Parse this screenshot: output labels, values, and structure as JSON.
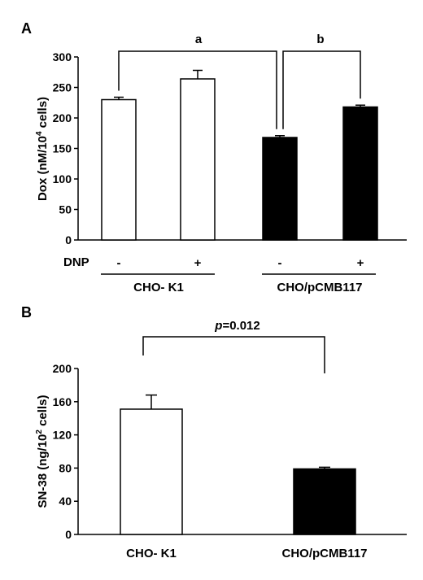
{
  "chart_data": [
    {
      "type": "bar",
      "panel": "A",
      "ylabel": "Dox (nM/10",
      "ylabel_sup": "4",
      "ylabel_end": " cells)",
      "ylim": [
        0,
        300
      ],
      "yticks": [
        "0",
        "50",
        "100",
        "150",
        "200",
        "250",
        "300"
      ],
      "row_label": "DNP",
      "categories": [
        "-",
        "+",
        "-",
        "+"
      ],
      "groups": [
        "CHO- K1",
        "CHO/pCMB117"
      ],
      "values": [
        230,
        264,
        168,
        218
      ],
      "errors": [
        4,
        14,
        3,
        3
      ],
      "fills": [
        "#ffffff",
        "#ffffff",
        "#000000",
        "#000000"
      ],
      "brackets": [
        "a",
        "b"
      ],
      "grid": false
    },
    {
      "type": "bar",
      "panel": "B",
      "ylabel": "SN-38 (ng/10",
      "ylabel_sup": "2",
      "ylabel_end": " cells)",
      "ylim": [
        0,
        200
      ],
      "yticks": [
        "0",
        "40",
        "80",
        "120",
        "160",
        "200"
      ],
      "categories": [
        "CHO- K1",
        "CHO/pCMB117"
      ],
      "values": [
        151,
        79
      ],
      "errors": [
        17,
        2
      ],
      "fills": [
        "#ffffff",
        "#000000"
      ],
      "annotation_p": "p",
      "annotation_value": "=0.012",
      "grid": false
    }
  ]
}
